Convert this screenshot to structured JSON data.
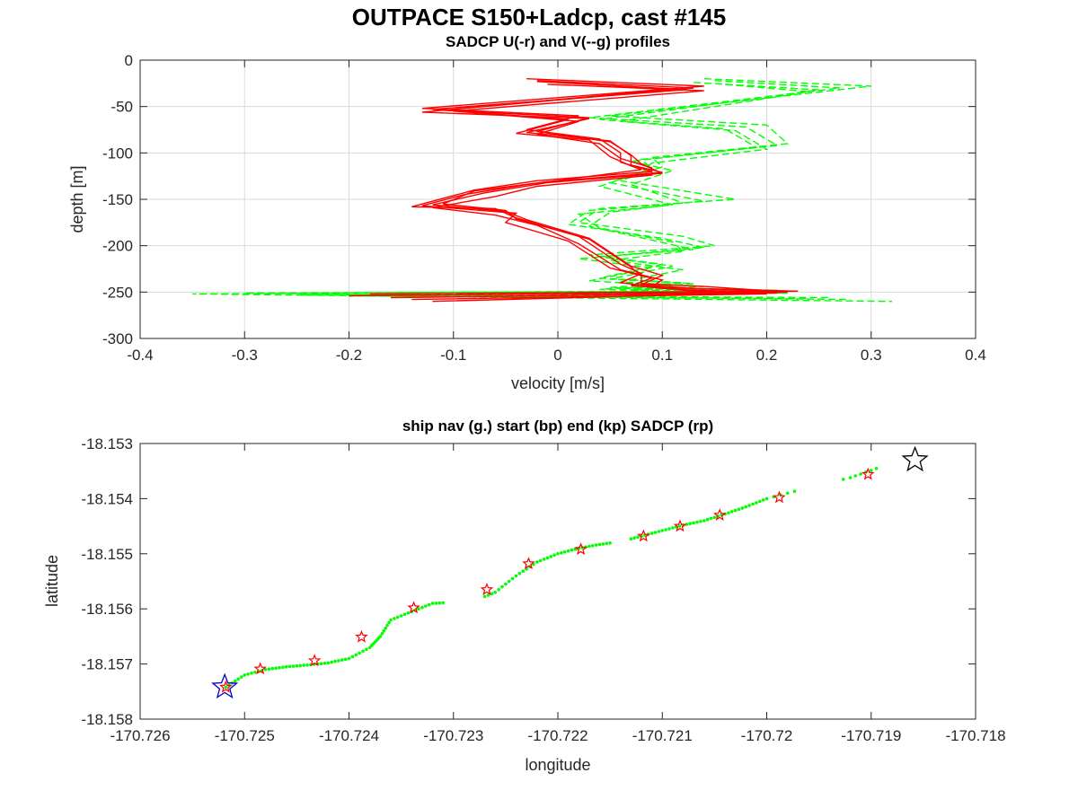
{
  "figure": {
    "suptitle": "OUTPACE S150+Ladcp, cast #145"
  },
  "chart_data": [
    {
      "type": "line",
      "title": "SADCP U(-r) and V(--g) profiles",
      "xlabel": "velocity [m/s]",
      "ylabel": "depth [m]",
      "xlim": [
        -0.4,
        0.4
      ],
      "ylim": [
        -300,
        0
      ],
      "xticks": [
        -0.4,
        -0.3,
        -0.2,
        -0.1,
        0,
        0.1,
        0.2,
        0.3,
        0.4
      ],
      "xtick_labels": [
        "-0.4",
        "-0.3",
        "-0.2",
        "-0.1",
        "0",
        "0.1",
        "0.2",
        "0.3",
        "0.4"
      ],
      "yticks": [
        0,
        -50,
        -100,
        -150,
        -200,
        -250,
        -300
      ],
      "ytick_labels": [
        "0",
        "-50",
        "-100",
        "-150",
        "-200",
        "-250",
        "-300"
      ],
      "grid": true,
      "series": [
        {
          "key": "U",
          "color": "#ff0000",
          "style": "solid",
          "profiles": [
            {
              "x": [
                -0.03,
                0.14,
                -0.13,
                0.02,
                -0.03,
                0.04,
                0.06,
                0.06,
                0.09,
                -0.02,
                -0.08,
                -0.14,
                -0.06,
                -0.04,
                0.02,
                0.06,
                0.08,
                0.06,
                0.1,
                0.22,
                -0.2
              ],
              "y": [
                -20,
                -28,
                -52,
                -60,
                -75,
                -85,
                -100,
                -110,
                -120,
                -130,
                -140,
                -158,
                -160,
                -170,
                -190,
                -220,
                -230,
                -240,
                -245,
                -250,
                -254
              ]
            },
            {
              "x": [
                -0.02,
                0.13,
                -0.11,
                0.03,
                -0.02,
                0.05,
                0.07,
                0.08,
                0.1,
                -0.01,
                -0.07,
                -0.12,
                -0.05,
                -0.03,
                0.03,
                0.07,
                0.1,
                0.08,
                0.13,
                0.23,
                -0.18
              ],
              "y": [
                -22,
                -30,
                -54,
                -62,
                -77,
                -88,
                -102,
                -112,
                -122,
                -132,
                -143,
                -156,
                -163,
                -172,
                -192,
                -222,
                -232,
                -242,
                -246,
                -249,
                -252
              ]
            },
            {
              "x": [
                0.0,
                0.12,
                -0.12,
                0.01,
                -0.04,
                0.03,
                0.05,
                0.07,
                0.08,
                -0.03,
                -0.09,
                -0.13,
                -0.04,
                -0.05,
                0.01,
                0.05,
                0.09,
                0.07,
                0.11,
                0.21,
                -0.16
              ],
              "y": [
                -24,
                -32,
                -53,
                -64,
                -79,
                -86,
                -104,
                -114,
                -118,
                -134,
                -145,
                -157,
                -165,
                -175,
                -195,
                -224,
                -235,
                -243,
                -247,
                -251,
                -256
              ]
            },
            {
              "x": [
                -0.01,
                0.14,
                -0.1,
                0.02,
                -0.02,
                0.04,
                0.06,
                0.09,
                0.09,
                -0.02,
                -0.06,
                -0.12,
                -0.06,
                -0.02,
                0.02,
                0.06,
                0.1,
                0.09,
                0.12,
                0.2,
                -0.14
              ],
              "y": [
                -26,
                -33,
                -55,
                -66,
                -80,
                -90,
                -106,
                -116,
                -124,
                -136,
                -147,
                -159,
                -167,
                -178,
                -198,
                -226,
                -237,
                -244,
                -248,
                -252,
                -258
              ]
            },
            {
              "x": [
                -0.02,
                0.11,
                -0.13,
                0.03,
                -0.03,
                0.05,
                0.07,
                0.07,
                0.1,
                -0.01,
                -0.08,
                -0.11,
                -0.05,
                -0.04,
                0.03,
                0.07,
                0.08,
                0.08,
                0.14,
                0.22,
                -0.12
              ],
              "y": [
                -23,
                -31,
                -56,
                -63,
                -78,
                -87,
                -103,
                -113,
                -121,
                -131,
                -141,
                -155,
                -162,
                -171,
                -193,
                -223,
                -233,
                -241,
                -244,
                -250,
                -260
              ]
            }
          ]
        },
        {
          "key": "V",
          "color": "#00ff00",
          "style": "dashed",
          "profiles": [
            {
              "x": [
                0.14,
                0.3,
                0.05,
                0.2,
                0.22,
                0.09,
                0.1,
                0.06,
                0.17,
                0.04,
                0.02,
                0.12,
                0.15,
                0.03,
                0.1,
                0.04,
                0.12,
                0.05,
                0.21,
                -0.35,
                0.32
              ],
              "y": [
                -20,
                -28,
                -60,
                -70,
                -90,
                -105,
                -115,
                -130,
                -150,
                -160,
                -175,
                -190,
                -200,
                -210,
                -220,
                -235,
                -240,
                -245,
                -248,
                -252,
                -260
              ]
            },
            {
              "x": [
                0.15,
                0.27,
                0.03,
                0.18,
                0.21,
                0.08,
                0.09,
                0.05,
                0.14,
                0.03,
                0.01,
                0.1,
                0.14,
                0.04,
                0.11,
                0.05,
                0.13,
                0.06,
                0.19,
                -0.3,
                0.28
              ],
              "y": [
                -22,
                -30,
                -62,
                -72,
                -92,
                -107,
                -117,
                -132,
                -152,
                -162,
                -177,
                -192,
                -202,
                -212,
                -222,
                -236,
                -241,
                -246,
                -249,
                -251,
                -258
              ]
            },
            {
              "x": [
                0.13,
                0.25,
                0.04,
                0.16,
                0.19,
                0.07,
                0.11,
                0.07,
                0.12,
                0.05,
                0.03,
                0.09,
                0.13,
                0.02,
                0.09,
                0.03,
                0.11,
                0.04,
                0.18,
                -0.25,
                0.26
              ],
              "y": [
                -24,
                -32,
                -64,
                -74,
                -94,
                -109,
                -119,
                -134,
                -154,
                -164,
                -179,
                -194,
                -204,
                -214,
                -224,
                -238,
                -243,
                -247,
                -250,
                -253,
                -256
              ]
            },
            {
              "x": [
                0.16,
                0.24,
                0.06,
                0.17,
                0.2,
                0.09,
                0.08,
                0.04,
                0.11,
                0.02,
                0.04,
                0.11,
                0.12,
                0.05,
                0.12,
                0.06,
                0.14,
                0.07,
                0.22,
                -0.2,
                0.24
              ],
              "y": [
                -26,
                -34,
                -66,
                -76,
                -96,
                -111,
                -121,
                -136,
                -156,
                -166,
                -181,
                -196,
                -206,
                -216,
                -226,
                -239,
                -244,
                -248,
                -251,
                -254,
                -257
              ]
            }
          ]
        }
      ]
    },
    {
      "type": "scatter",
      "title": "ship nav (g.) start (bp) end (kp) SADCP (rp)",
      "xlabel": "longitude",
      "ylabel": "latitude",
      "xlim": [
        -170.726,
        -170.718
      ],
      "ylim": [
        -18.158,
        -18.153
      ],
      "xticks": [
        -170.726,
        -170.725,
        -170.724,
        -170.723,
        -170.722,
        -170.721,
        -170.72,
        -170.719,
        -170.718
      ],
      "xtick_labels": [
        "-170.726",
        "-170.725",
        "-170.724",
        "-170.723",
        "-170.722",
        "-170.721",
        "-170.72",
        "-170.719",
        "-170.718"
      ],
      "yticks": [
        -18.153,
        -18.154,
        -18.155,
        -18.156,
        -18.157,
        -18.158
      ],
      "ytick_labels": [
        "-18.153",
        "-18.154",
        "-18.155",
        "-18.156",
        "-18.157",
        "-18.158"
      ],
      "grid": false,
      "ship_nav": {
        "color": "#00ff00",
        "path": [
          [
            -170.72518,
            -18.15742
          ],
          [
            -170.725,
            -18.1572
          ],
          [
            -170.7248,
            -18.1571
          ],
          [
            -170.7246,
            -18.15705
          ],
          [
            -170.7244,
            -18.15702
          ],
          [
            -170.7242,
            -18.15698
          ],
          [
            -170.724,
            -18.1569
          ],
          [
            -170.7238,
            -18.1567
          ],
          [
            -170.7237,
            -18.1565
          ],
          [
            -170.7236,
            -18.1562
          ],
          [
            -170.7234,
            -18.15605
          ],
          [
            -170.7232,
            -18.1559
          ],
          [
            -170.723,
            -18.15588
          ],
          [
            -170.7228,
            -18.15585
          ],
          [
            -170.7226,
            -18.1557
          ],
          [
            -170.7224,
            -18.1554
          ],
          [
            -170.7222,
            -18.15515
          ],
          [
            -170.722,
            -18.155
          ],
          [
            -170.7218,
            -18.1549
          ],
          [
            -170.7216,
            -18.15483
          ],
          [
            -170.7214,
            -18.15478
          ],
          [
            -170.7212,
            -18.15468
          ],
          [
            -170.721,
            -18.15458
          ],
          [
            -170.7208,
            -18.15448
          ],
          [
            -170.7206,
            -18.1544
          ],
          [
            -170.7204,
            -18.15428
          ],
          [
            -170.7202,
            -18.15415
          ],
          [
            -170.72,
            -18.154
          ],
          [
            -170.7196,
            -18.1538
          ],
          [
            -170.7192,
            -18.15362
          ],
          [
            -170.7189,
            -18.15342
          ]
        ],
        "gaps": [
          [
            -170.7231,
            -170.7227
          ],
          [
            -170.7215,
            -170.7213
          ],
          [
            -170.7197,
            -170.7193
          ]
        ]
      },
      "sadcp_points": {
        "color": "#ff0000",
        "points": [
          [
            -170.72518,
            -18.15742
          ],
          [
            -170.72485,
            -18.15709
          ],
          [
            -170.72433,
            -18.15694
          ],
          [
            -170.72388,
            -18.15651
          ],
          [
            -170.72338,
            -18.15598
          ],
          [
            -170.72268,
            -18.15565
          ],
          [
            -170.72228,
            -18.15518
          ],
          [
            -170.72178,
            -18.15492
          ],
          [
            -170.72118,
            -18.15468
          ],
          [
            -170.72083,
            -18.1545
          ],
          [
            -170.72045,
            -18.1543
          ],
          [
            -170.71988,
            -18.15398
          ],
          [
            -170.71903,
            -18.15356
          ]
        ]
      },
      "start_point": {
        "lon": -170.72519,
        "lat": -18.15742,
        "color": "#0000cc"
      },
      "end_point": {
        "lon": -170.71858,
        "lat": -18.1533,
        "color": "#000000"
      }
    }
  ]
}
